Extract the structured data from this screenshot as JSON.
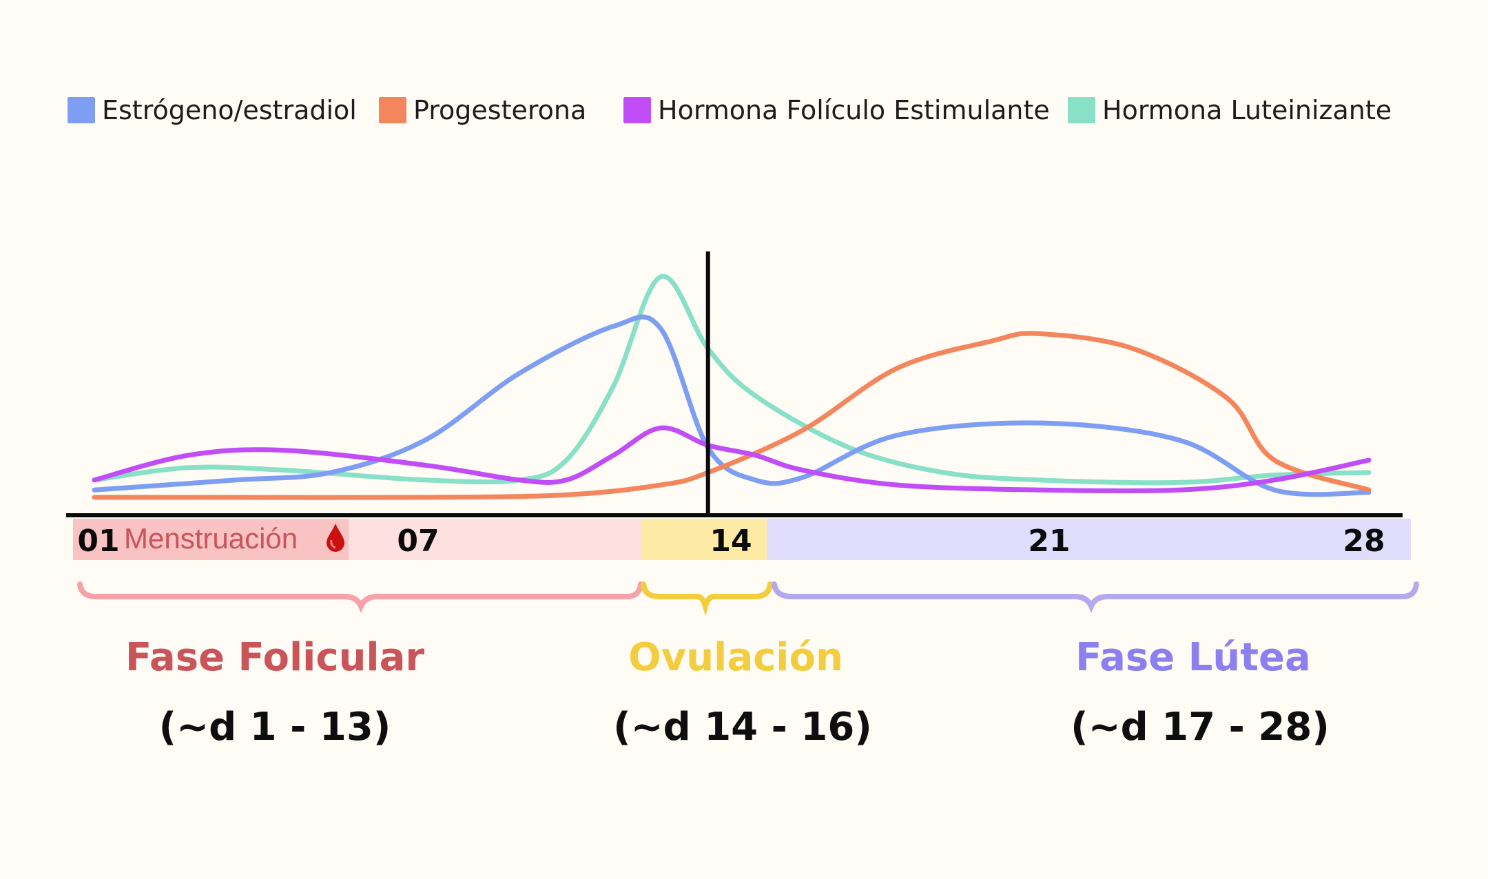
{
  "colors": {
    "background": "#fefcf5",
    "estrogen": "#7d9ef2",
    "progesterone": "#f4865e",
    "fsh": "#c14df6",
    "lh": "#88e0c6",
    "follicular": "#c9545a",
    "ovulation": "#f3cd3d",
    "luteal": "#8c7ff0",
    "follicular_band": "#fde0df",
    "menstruation_band": "#f9c3c3",
    "ovulation_band": "#fdeaa5",
    "luteal_band": "#e0dcfc"
  },
  "menstruation": {
    "label": "Menstruación",
    "icon": "blood-drop-icon"
  },
  "chart_data": {
    "type": "line",
    "title": "",
    "xlabel": "",
    "ylabel": "",
    "xlim": [
      0,
      29
    ],
    "ylim": [
      0,
      100
    ],
    "x_ticks": [
      {
        "value": 1,
        "label": "01"
      },
      {
        "value": 7,
        "label": "07"
      },
      {
        "value": 14,
        "label": "14"
      },
      {
        "value": 21,
        "label": "21"
      },
      {
        "value": 28,
        "label": "28"
      }
    ],
    "vertical_marker_day": 14,
    "legend_position": "top",
    "series": [
      {
        "name": "Estrógeno/estradiol",
        "color": "#7d9ef2",
        "points": [
          [
            1,
            8
          ],
          [
            4,
            12
          ],
          [
            6,
            15
          ],
          [
            8,
            28
          ],
          [
            10,
            55
          ],
          [
            12,
            74
          ],
          [
            13,
            73
          ],
          [
            14,
            25
          ],
          [
            15,
            12
          ],
          [
            16,
            13
          ],
          [
            18,
            30
          ],
          [
            21,
            35
          ],
          [
            24,
            28
          ],
          [
            26,
            8
          ],
          [
            28,
            7
          ]
        ]
      },
      {
        "name": "Progesterona",
        "color": "#f4865e",
        "points": [
          [
            1,
            5
          ],
          [
            4,
            5
          ],
          [
            8,
            5
          ],
          [
            11,
            6
          ],
          [
            13,
            10
          ],
          [
            14,
            15
          ],
          [
            16,
            32
          ],
          [
            18,
            57
          ],
          [
            20,
            68
          ],
          [
            21,
            71
          ],
          [
            23,
            65
          ],
          [
            25,
            45
          ],
          [
            26,
            20
          ],
          [
            28,
            8
          ]
        ]
      },
      {
        "name": "Hormona Folículo Estimulante",
        "color": "#c14df6",
        "points": [
          [
            1,
            12
          ],
          [
            3,
            22
          ],
          [
            5,
            24
          ],
          [
            8,
            18
          ],
          [
            10,
            12
          ],
          [
            11,
            12
          ],
          [
            12,
            22
          ],
          [
            13,
            33
          ],
          [
            14,
            26
          ],
          [
            15,
            22
          ],
          [
            16,
            16
          ],
          [
            18,
            10
          ],
          [
            21,
            8
          ],
          [
            24,
            8
          ],
          [
            26,
            12
          ],
          [
            28,
            20
          ]
        ]
      },
      {
        "name": "Hormona Luteinizante",
        "color": "#88e0c6",
        "points": [
          [
            1,
            12
          ],
          [
            3,
            17
          ],
          [
            5,
            16
          ],
          [
            8,
            12
          ],
          [
            10,
            12
          ],
          [
            11,
            20
          ],
          [
            12,
            50
          ],
          [
            13,
            94
          ],
          [
            14,
            65
          ],
          [
            15,
            46
          ],
          [
            17,
            25
          ],
          [
            19,
            15
          ],
          [
            21,
            12
          ],
          [
            24,
            11
          ],
          [
            26,
            14
          ],
          [
            28,
            15
          ]
        ]
      }
    ]
  },
  "phases": [
    {
      "name": "Fase Folicular",
      "range": "(~d 1 - 13)",
      "color": "#c9545a"
    },
    {
      "name": "Ovulación",
      "range": "(~d 14 - 16)",
      "color": "#f3cd3d"
    },
    {
      "name": "Fase Lútea",
      "range": "(~d 17 - 28)",
      "color": "#8c7ff0"
    }
  ]
}
